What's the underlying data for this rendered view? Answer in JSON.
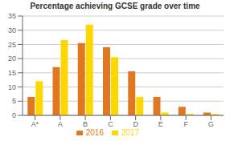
{
  "chart_data": {
    "type": "bar",
    "title": "Percentage achieving GCSE grade over time",
    "categories": [
      "A*",
      "A",
      "B",
      "C",
      "D",
      "E",
      "F",
      "G"
    ],
    "series": [
      {
        "name": "2016",
        "color": "#E07820",
        "values": [
          6.5,
          17,
          25.5,
          24,
          15.5,
          6.5,
          3,
          1
        ]
      },
      {
        "name": "2017",
        "color": "#FFD700",
        "values": [
          12,
          26.5,
          32,
          20.5,
          6.5,
          1,
          0.5,
          0.5
        ]
      }
    ],
    "ylim": [
      0,
      35
    ],
    "yticks": [
      0,
      5,
      10,
      15,
      20,
      25,
      30,
      35
    ],
    "grid": true,
    "legend": "bottom"
  }
}
